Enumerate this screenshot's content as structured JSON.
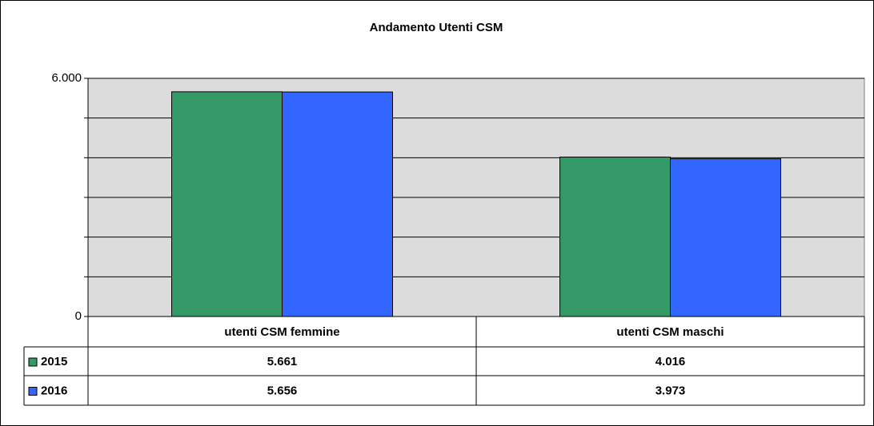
{
  "chart_data": {
    "type": "bar",
    "title": "Andamento Utenti CSM",
    "categories": [
      "utenti CSM femmine",
      "utenti CSM maschi"
    ],
    "series": [
      {
        "name": "2015",
        "color": "#339966",
        "values": [
          5661,
          4016
        ],
        "value_labels": [
          "5.661",
          "4.016"
        ]
      },
      {
        "name": "2016",
        "color": "#3366ff",
        "values": [
          5656,
          3973
        ],
        "value_labels": [
          "5.656",
          "3.973"
        ]
      }
    ],
    "ylim": [
      0,
      6000
    ],
    "yticks": [
      0,
      {
        "value": 6000,
        "label": "6.000"
      }
    ],
    "grid_lines": [
      1000,
      2000,
      3000,
      4000,
      5000,
      6000
    ],
    "grid": true,
    "plot_background": "#dcdcdc"
  }
}
